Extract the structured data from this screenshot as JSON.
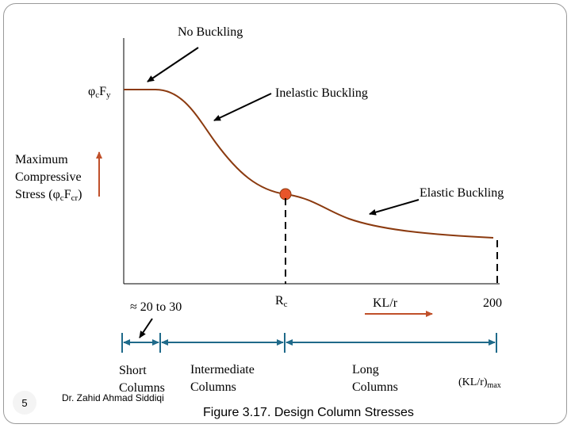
{
  "labels": {
    "no_buckling": "No Buckling",
    "inelastic_buckling": "Inelastic Buckling",
    "elastic_buckling": "Elastic Buckling",
    "fy_phi": "φ",
    "fy_c": "c",
    "fy_f": "F",
    "fy_y": "y",
    "y_axis_line1": "Maximum",
    "y_axis_line2": "Compressive",
    "y_axis_line3_pre": "Stress (",
    "y_axis_phi": "φ",
    "y_axis_c": "c",
    "y_axis_f": "F",
    "y_axis_cr": "cr",
    "y_axis_close": ")",
    "approx_range": "≈ 20 to 30",
    "rc_r": "R",
    "rc_c": "c",
    "klr": "KL/r",
    "max_200": "200",
    "short_line1": "Short",
    "short_line2": "Columns",
    "intermediate_line1": "Intermediate",
    "intermediate_line2": "Columns",
    "long_line1": "Long",
    "long_line2": "Columns",
    "klr_max_main": "(KL/r)",
    "klr_max_sub": "max"
  },
  "footer": {
    "page_number": "5",
    "author": "Dr. Zahid Ahmad Siddiqi",
    "caption": "Figure 3.17. Design Column Stresses"
  },
  "colors": {
    "curve": "#8B3A0F",
    "marker": "#E8552A",
    "arrow_blue": "#1F6A8A",
    "axis_arrow": "#C0502A"
  }
}
